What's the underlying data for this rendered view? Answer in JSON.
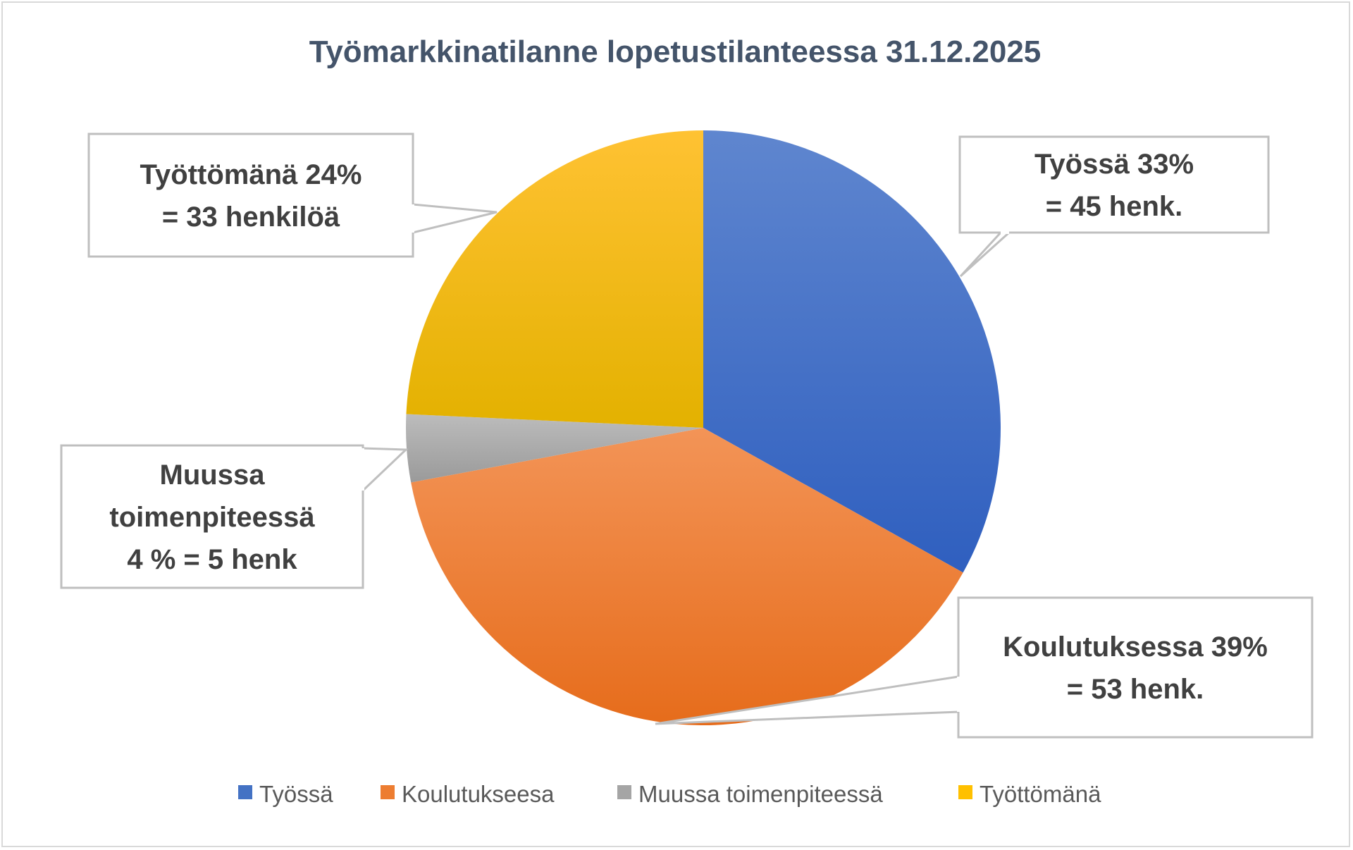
{
  "chart_data": {
    "type": "pie",
    "title": "Työmarkkinatilanne lopetustilanteessa 31.12.2025",
    "categories": [
      "Työssä",
      "Koulutukseesa",
      "Muussa toimenpiteessä",
      "Työttömänä"
    ],
    "values": [
      45,
      53,
      5,
      33
    ],
    "percentages": [
      33,
      39,
      4,
      24
    ],
    "colors": [
      "#4472c4",
      "#ed7d31",
      "#a5a5a5",
      "#ffc000"
    ],
    "data_labels": [
      [
        "Työssä 33%",
        "= 45 henk."
      ],
      [
        "Koulutuksessa 39%",
        "= 53 henk."
      ],
      [
        "Muussa",
        "toimenpiteessä",
        "4 % = 5 henk"
      ],
      [
        "Työttömänä 24%",
        "= 33 henkilöä"
      ]
    ],
    "legend": {
      "position": "bottom",
      "entries": [
        "Työssä",
        "Koulutukseesa",
        "Muussa toimenpiteessä",
        "Työttömänä"
      ]
    }
  }
}
